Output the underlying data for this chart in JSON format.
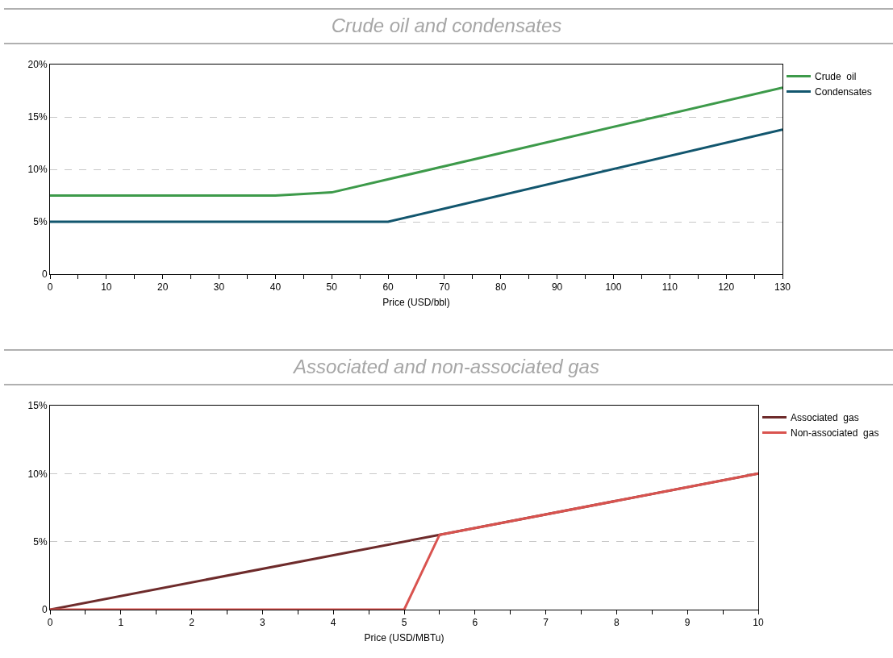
{
  "chart_data": [
    {
      "type": "line",
      "title": "Crude oil and condensates",
      "xlabel": "Price (USD/bbl)",
      "xlim": [
        0,
        130
      ],
      "xticks": [
        0,
        {
          "value": 5,
          "label": null
        },
        10,
        {
          "value": 15,
          "label": null
        },
        20,
        {
          "value": 25,
          "label": null
        },
        30,
        {
          "value": 35,
          "label": null
        },
        40,
        {
          "value": 45,
          "label": null
        },
        50,
        {
          "value": 55,
          "label": null
        },
        60,
        {
          "value": 65,
          "label": null
        },
        70,
        {
          "value": 75,
          "label": null
        },
        80,
        {
          "value": 85,
          "label": null
        },
        90,
        {
          "value": 95,
          "label": null
        },
        100,
        {
          "value": 105,
          "label": null
        },
        110,
        {
          "value": 115,
          "label": null
        },
        120,
        {
          "value": 125,
          "label": null
        },
        130
      ],
      "ylim": [
        0,
        20
      ],
      "yticks": [
        {
          "value": 0,
          "label": "0"
        },
        {
          "value": 5,
          "label": "5%"
        },
        {
          "value": 10,
          "label": "10%"
        },
        {
          "value": 15,
          "label": "15%"
        },
        {
          "value": 20,
          "label": "20%"
        }
      ],
      "grid": "y",
      "legend": "right",
      "marker": "none",
      "line_style": "solid",
      "series": [
        {
          "name": "Crude  oil",
          "color": "#3d9a4a",
          "x": [
            0,
            40,
            50,
            130
          ],
          "values": [
            7.5,
            7.5,
            7.8,
            17.8
          ]
        },
        {
          "name": "Condensates",
          "color": "#12566e",
          "x": [
            0,
            60,
            130
          ],
          "values": [
            5,
            5,
            13.8
          ]
        }
      ]
    },
    {
      "type": "line",
      "title": "Associated and non-associated gas",
      "xlabel": "Price (USD/MBTu)",
      "xlim": [
        0,
        10
      ],
      "xticks": [
        0,
        {
          "value": 0.5,
          "label": null
        },
        1,
        {
          "value": 1.5,
          "label": null
        },
        2,
        {
          "value": 2.5,
          "label": null
        },
        3,
        {
          "value": 3.5,
          "label": null
        },
        4,
        {
          "value": 4.5,
          "label": null
        },
        5,
        {
          "value": 5.5,
          "label": null
        },
        6,
        {
          "value": 6.5,
          "label": null
        },
        7,
        {
          "value": 7.5,
          "label": null
        },
        8,
        {
          "value": 8.5,
          "label": null
        },
        9,
        {
          "value": 9.5,
          "label": null
        },
        10
      ],
      "ylim": [
        0,
        15
      ],
      "yticks": [
        {
          "value": 0,
          "label": "0"
        },
        {
          "value": 5,
          "label": "5%"
        },
        {
          "value": 10,
          "label": "10%"
        },
        {
          "value": 15,
          "label": "15%"
        }
      ],
      "grid": "y",
      "legend": "right",
      "marker": "none",
      "line_style": "solid",
      "series": [
        {
          "name": "Associated  gas",
          "color": "#6e2b2b",
          "x": [
            0,
            5.5,
            10
          ],
          "values": [
            0,
            5.5,
            10
          ]
        },
        {
          "name": "Non-associated  gas",
          "color": "#d9534f",
          "x": [
            0,
            5,
            5.5,
            10
          ],
          "values": [
            0,
            0,
            5.5,
            10
          ]
        }
      ]
    }
  ]
}
